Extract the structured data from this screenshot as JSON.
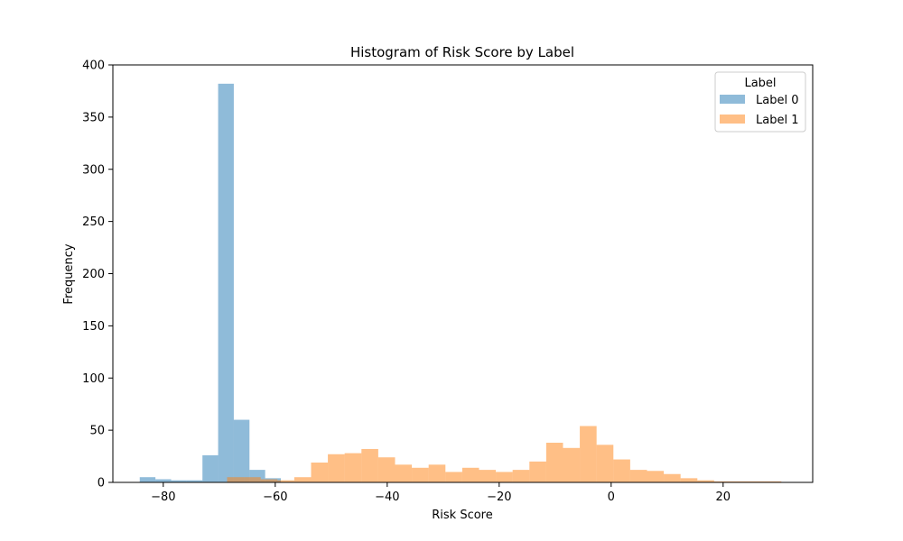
{
  "chart_data": {
    "type": "bar",
    "title": "Histogram of Risk Score by Label",
    "xlabel": "Risk Score",
    "ylabel": "Frequency",
    "xlim": [
      -89,
      36
    ],
    "ylim": [
      0,
      400
    ],
    "xticks": [
      -80,
      -60,
      -40,
      -20,
      0,
      20
    ],
    "xtick_labels": [
      "−80",
      "−60",
      "−40",
      "−20",
      "0",
      "20"
    ],
    "yticks": [
      0,
      50,
      100,
      150,
      200,
      250,
      300,
      350,
      400
    ],
    "ytick_labels": [
      "0",
      "50",
      "100",
      "150",
      "200",
      "250",
      "300",
      "350",
      "400"
    ],
    "grid": false,
    "legend": {
      "title": "Label",
      "placement": "top-right"
    },
    "series": [
      {
        "name": "Label 0",
        "color": "#1f77b4",
        "opacity": 0.5,
        "bin_edges": [
          -84.2,
          -81.4,
          -78.6,
          -75.8,
          -73.0,
          -70.2,
          -67.4,
          -64.6,
          -61.8,
          -59.0
        ],
        "counts": [
          5,
          3,
          2,
          2,
          26,
          382,
          60,
          12,
          4
        ]
      },
      {
        "name": "Label 1",
        "color": "#ff7f0e",
        "opacity": 0.5,
        "bin_edges": [
          -68.6,
          -65.6,
          -62.6,
          -59.6,
          -56.6,
          -53.6,
          -50.6,
          -47.6,
          -44.6,
          -41.6,
          -38.6,
          -35.6,
          -32.6,
          -29.6,
          -26.6,
          -23.6,
          -20.6,
          -17.6,
          -14.6,
          -11.6,
          -8.6,
          -5.6,
          -2.6,
          0.4,
          3.4,
          6.4,
          9.4,
          12.4,
          15.4,
          18.4,
          21.4,
          24.4,
          27.4,
          30.4
        ],
        "counts": [
          5,
          5,
          3,
          2,
          5,
          19,
          27,
          28,
          32,
          24,
          17,
          14,
          17,
          10,
          14,
          12,
          10,
          12,
          20,
          38,
          33,
          54,
          36,
          22,
          12,
          11,
          8,
          4,
          2,
          1,
          1,
          1,
          1
        ]
      }
    ]
  }
}
